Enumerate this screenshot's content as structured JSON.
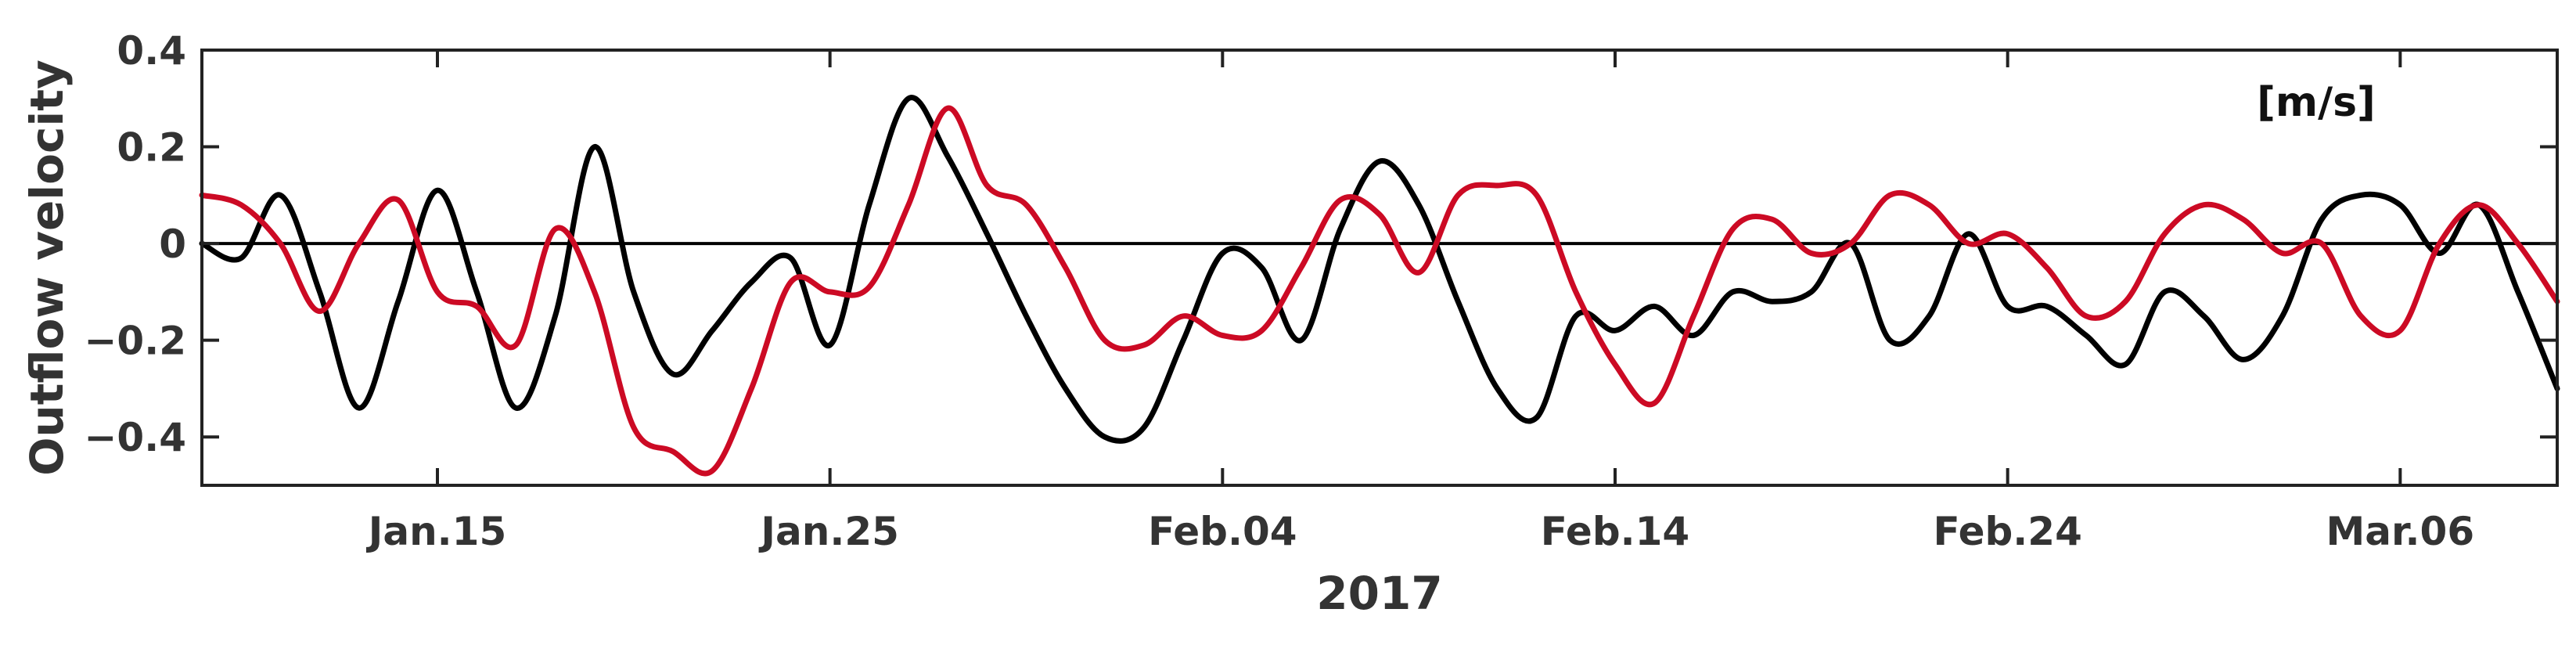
{
  "chart_data": {
    "type": "line",
    "title": "",
    "xlabel": "2017",
    "ylabel": "Outflow velocity",
    "unit_annotation": "[m/s]",
    "xlim": [
      "2017-01-09",
      "2017-03-10"
    ],
    "ylim": [
      -0.5,
      0.4
    ],
    "x_ticks": [
      "2017-01-15",
      "2017-01-25",
      "2017-02-04",
      "2017-02-14",
      "2017-02-24",
      "2017-03-06"
    ],
    "x_tick_labels": [
      "Jan.15",
      "Jan.25",
      "Feb.04",
      "Feb.14",
      "Feb.24",
      "Mar.06"
    ],
    "y_ticks": [
      0.4,
      0.2,
      0,
      -0.2,
      -0.4
    ],
    "y_tick_labels": [
      "0.4",
      "0.2",
      "0",
      "−0.2",
      "−0.4"
    ],
    "zero_line": true,
    "grid": false,
    "series": [
      {
        "color": "#000000",
        "points": [
          [
            "2017-01-09",
            0.0
          ],
          [
            "2017-01-10",
            -0.03
          ],
          [
            "2017-01-11",
            0.1
          ],
          [
            "2017-01-12",
            -0.1
          ],
          [
            "2017-01-13",
            -0.34
          ],
          [
            "2017-01-14",
            -0.12
          ],
          [
            "2017-01-15",
            0.11
          ],
          [
            "2017-01-16",
            -0.1
          ],
          [
            "2017-01-17",
            -0.34
          ],
          [
            "2017-01-18",
            -0.15
          ],
          [
            "2017-01-19",
            0.2
          ],
          [
            "2017-01-20",
            -0.1
          ],
          [
            "2017-01-21",
            -0.27
          ],
          [
            "2017-01-22",
            -0.18
          ],
          [
            "2017-01-23",
            -0.08
          ],
          [
            "2017-01-24",
            -0.03
          ],
          [
            "2017-01-25",
            -0.21
          ],
          [
            "2017-01-26",
            0.08
          ],
          [
            "2017-01-27",
            0.3
          ],
          [
            "2017-01-28",
            0.18
          ],
          [
            "2017-01-29",
            0.02
          ],
          [
            "2017-01-30",
            -0.15
          ],
          [
            "2017-01-31",
            -0.3
          ],
          [
            "2017-02-01",
            -0.4
          ],
          [
            "2017-02-02",
            -0.38
          ],
          [
            "2017-02-03",
            -0.2
          ],
          [
            "2017-02-04",
            -0.02
          ],
          [
            "2017-02-05",
            -0.05
          ],
          [
            "2017-02-06",
            -0.2
          ],
          [
            "2017-02-07",
            0.03
          ],
          [
            "2017-02-08",
            0.17
          ],
          [
            "2017-02-09",
            0.08
          ],
          [
            "2017-02-10",
            -0.12
          ],
          [
            "2017-02-11",
            -0.3
          ],
          [
            "2017-02-12",
            -0.36
          ],
          [
            "2017-02-13",
            -0.15
          ],
          [
            "2017-02-14",
            -0.18
          ],
          [
            "2017-02-15",
            -0.13
          ],
          [
            "2017-02-16",
            -0.19
          ],
          [
            "2017-02-17",
            -0.1
          ],
          [
            "2017-02-18",
            -0.12
          ],
          [
            "2017-02-19",
            -0.1
          ],
          [
            "2017-02-20",
            0.0
          ],
          [
            "2017-02-21",
            -0.2
          ],
          [
            "2017-02-22",
            -0.15
          ],
          [
            "2017-02-23",
            0.02
          ],
          [
            "2017-02-24",
            -0.13
          ],
          [
            "2017-02-25",
            -0.13
          ],
          [
            "2017-02-26",
            -0.19
          ],
          [
            "2017-02-27",
            -0.25
          ],
          [
            "2017-02-28",
            -0.1
          ],
          [
            "2017-03-01",
            -0.15
          ],
          [
            "2017-03-02",
            -0.24
          ],
          [
            "2017-03-03",
            -0.15
          ],
          [
            "2017-03-04",
            0.05
          ],
          [
            "2017-03-05",
            0.1
          ],
          [
            "2017-03-06",
            0.08
          ],
          [
            "2017-03-07",
            -0.02
          ],
          [
            "2017-03-08",
            0.08
          ],
          [
            "2017-03-09",
            -0.1
          ],
          [
            "2017-03-10",
            -0.3
          ]
        ]
      },
      {
        "color": "#cc0a24",
        "points": [
          [
            "2017-01-09",
            0.1
          ],
          [
            "2017-01-10",
            0.08
          ],
          [
            "2017-01-11",
            0.0
          ],
          [
            "2017-01-12",
            -0.14
          ],
          [
            "2017-01-13",
            0.0
          ],
          [
            "2017-01-14",
            0.09
          ],
          [
            "2017-01-15",
            -0.1
          ],
          [
            "2017-01-16",
            -0.13
          ],
          [
            "2017-01-17",
            -0.21
          ],
          [
            "2017-01-18",
            0.03
          ],
          [
            "2017-01-19",
            -0.1
          ],
          [
            "2017-01-20",
            -0.38
          ],
          [
            "2017-01-21",
            -0.43
          ],
          [
            "2017-01-22",
            -0.47
          ],
          [
            "2017-01-23",
            -0.3
          ],
          [
            "2017-01-24",
            -0.08
          ],
          [
            "2017-01-25",
            -0.1
          ],
          [
            "2017-01-26",
            -0.09
          ],
          [
            "2017-01-27",
            0.08
          ],
          [
            "2017-01-28",
            0.28
          ],
          [
            "2017-01-29",
            0.12
          ],
          [
            "2017-01-30",
            0.08
          ],
          [
            "2017-01-31",
            -0.05
          ],
          [
            "2017-02-01",
            -0.2
          ],
          [
            "2017-02-02",
            -0.21
          ],
          [
            "2017-02-03",
            -0.15
          ],
          [
            "2017-02-04",
            -0.19
          ],
          [
            "2017-02-05",
            -0.18
          ],
          [
            "2017-02-06",
            -0.05
          ],
          [
            "2017-02-07",
            0.09
          ],
          [
            "2017-02-08",
            0.06
          ],
          [
            "2017-02-09",
            -0.06
          ],
          [
            "2017-02-10",
            0.1
          ],
          [
            "2017-02-11",
            0.12
          ],
          [
            "2017-02-12",
            0.1
          ],
          [
            "2017-02-13",
            -0.1
          ],
          [
            "2017-02-14",
            -0.25
          ],
          [
            "2017-02-15",
            -0.33
          ],
          [
            "2017-02-16",
            -0.15
          ],
          [
            "2017-02-17",
            0.03
          ],
          [
            "2017-02-18",
            0.05
          ],
          [
            "2017-02-19",
            -0.02
          ],
          [
            "2017-02-20",
            0.0
          ],
          [
            "2017-02-21",
            0.1
          ],
          [
            "2017-02-22",
            0.08
          ],
          [
            "2017-02-23",
            0.0
          ],
          [
            "2017-02-24",
            0.02
          ],
          [
            "2017-02-25",
            -0.05
          ],
          [
            "2017-02-26",
            -0.15
          ],
          [
            "2017-02-27",
            -0.12
          ],
          [
            "2017-02-28",
            0.02
          ],
          [
            "2017-03-01",
            0.08
          ],
          [
            "2017-03-02",
            0.05
          ],
          [
            "2017-03-03",
            -0.02
          ],
          [
            "2017-03-04",
            0.0
          ],
          [
            "2017-03-05",
            -0.15
          ],
          [
            "2017-03-06",
            -0.18
          ],
          [
            "2017-03-07",
            0.0
          ],
          [
            "2017-03-08",
            0.08
          ],
          [
            "2017-03-09",
            0.0
          ],
          [
            "2017-03-10",
            -0.12
          ]
        ]
      }
    ]
  }
}
